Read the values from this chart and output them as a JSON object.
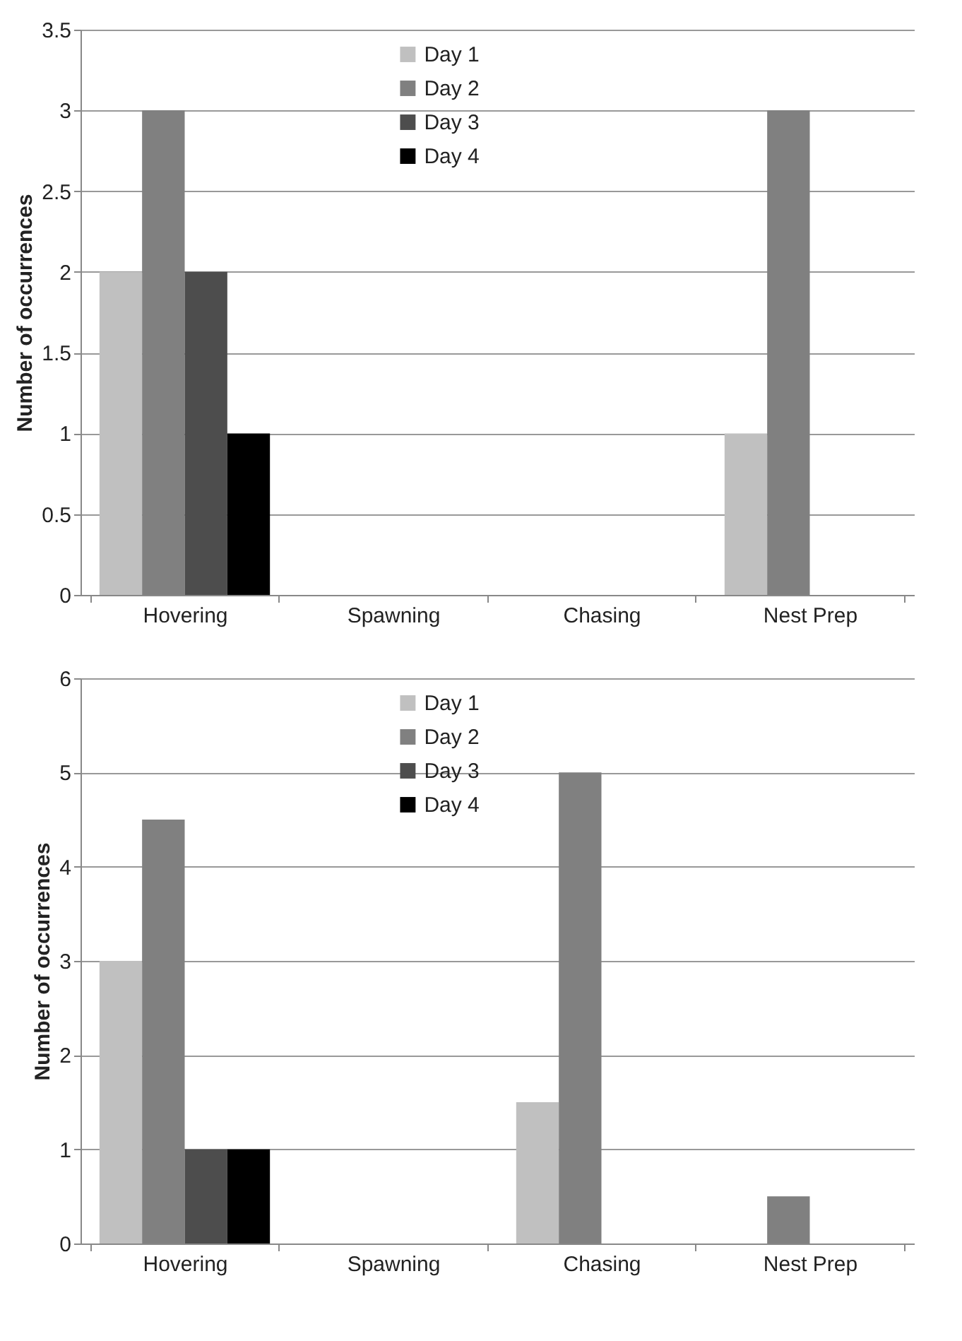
{
  "chart_data": [
    {
      "type": "bar",
      "ylabel": "Number of occurrences",
      "categories": [
        "Hovering",
        "Spawning",
        "Chasing",
        "Nest Prep"
      ],
      "series": [
        {
          "name": "Day 1",
          "color": "#c0c0c0",
          "values": [
            2,
            0,
            0,
            1
          ]
        },
        {
          "name": "Day 2",
          "color": "#808080",
          "values": [
            3,
            0,
            0,
            3
          ]
        },
        {
          "name": "Day 3",
          "color": "#4d4d4d",
          "values": [
            2,
            0,
            0,
            0
          ]
        },
        {
          "name": "Day 4",
          "color": "#000000",
          "values": [
            1,
            0,
            0,
            0
          ]
        }
      ],
      "ylim": [
        0,
        3.5
      ],
      "yticks": [
        0,
        0.5,
        1,
        1.5,
        2,
        2.5,
        3,
        3.5
      ],
      "grid": "y",
      "legend": "top"
    },
    {
      "type": "bar",
      "ylabel": "Number of occurrences",
      "categories": [
        "Hovering",
        "Spawning",
        "Chasing",
        "Nest Prep"
      ],
      "series": [
        {
          "name": "Day 1",
          "color": "#c0c0c0",
          "values": [
            3,
            0,
            1.5,
            0
          ]
        },
        {
          "name": "Day 2",
          "color": "#808080",
          "values": [
            4.5,
            0,
            5,
            0.5
          ]
        },
        {
          "name": "Day 3",
          "color": "#4d4d4d",
          "values": [
            1,
            0,
            0,
            0
          ]
        },
        {
          "name": "Day 4",
          "color": "#000000",
          "values": [
            1,
            0,
            0,
            0
          ]
        }
      ],
      "ylim": [
        0,
        6
      ],
      "yticks": [
        0,
        1,
        2,
        3,
        4,
        5,
        6
      ],
      "grid": "y",
      "legend": "top"
    }
  ]
}
